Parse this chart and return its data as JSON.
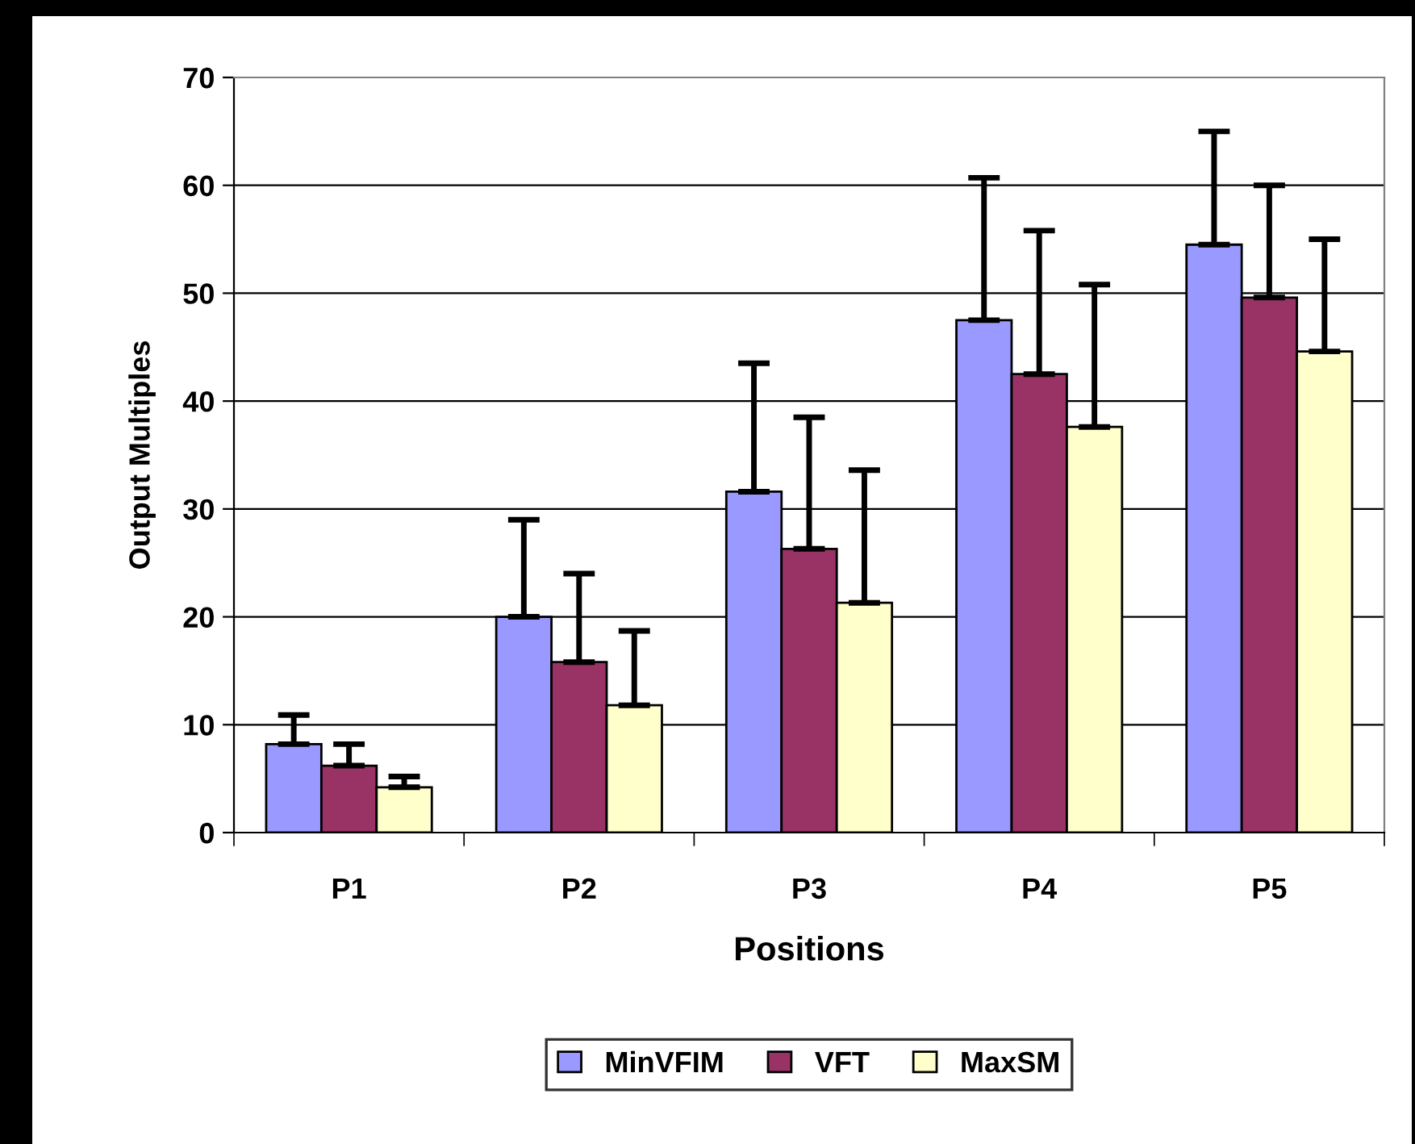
{
  "chart_data": {
    "type": "bar",
    "xlabel": "Positions",
    "ylabel": "Output Multiples",
    "categories": [
      "P1",
      "P2",
      "P3",
      "P4",
      "P5"
    ],
    "series": [
      {
        "name": "MinVFIM",
        "color": "#9999ff",
        "values": [
          8.2,
          20.0,
          31.6,
          47.5,
          54.5
        ],
        "errors": [
          [
            8.2,
            10.9
          ],
          [
            20.0,
            29.0
          ],
          [
            31.6,
            43.5
          ],
          [
            47.5,
            60.7
          ],
          [
            54.5,
            65.0
          ]
        ]
      },
      {
        "name": "VFT",
        "color": "#993366",
        "values": [
          6.2,
          15.8,
          26.3,
          42.5,
          49.6
        ],
        "errors": [
          [
            6.2,
            8.2
          ],
          [
            15.8,
            24.0
          ],
          [
            26.3,
            38.5
          ],
          [
            42.5,
            55.8
          ],
          [
            49.6,
            60.0
          ]
        ]
      },
      {
        "name": "MaxSM",
        "color": "#ffffcc",
        "values": [
          4.2,
          11.8,
          21.3,
          37.6,
          44.6
        ],
        "errors": [
          [
            4.2,
            5.2
          ],
          [
            11.8,
            18.7
          ],
          [
            21.3,
            33.6
          ],
          [
            37.6,
            50.8
          ],
          [
            44.6,
            55.0
          ]
        ]
      }
    ],
    "ylim": [
      0,
      70
    ],
    "yticks": [
      0,
      10,
      20,
      30,
      40,
      50,
      60,
      70
    ],
    "grid": "y",
    "legend": "bottom"
  }
}
